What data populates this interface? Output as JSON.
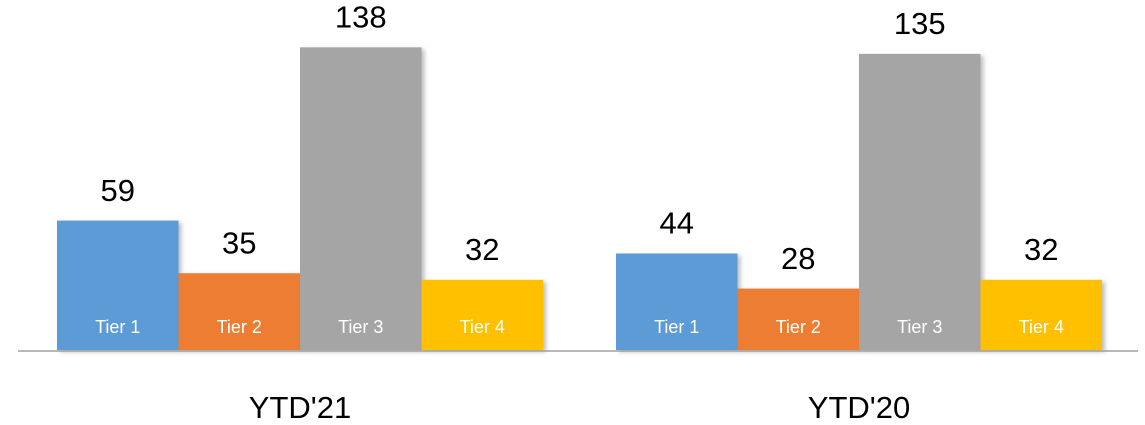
{
  "chart_data": {
    "type": "bar",
    "categories": [
      "YTD'21",
      "YTD'20"
    ],
    "series": [
      {
        "name": "Tier 1",
        "color": "#5b9bd5",
        "values": [
          59,
          44
        ]
      },
      {
        "name": "Tier 2",
        "color": "#ed7d31",
        "values": [
          35,
          28
        ]
      },
      {
        "name": "Tier 3",
        "color": "#a5a5a5",
        "values": [
          138,
          135
        ]
      },
      {
        "name": "Tier 4",
        "color": "#ffc000",
        "values": [
          32,
          32
        ]
      }
    ],
    "ylim": [
      0,
      150
    ]
  }
}
